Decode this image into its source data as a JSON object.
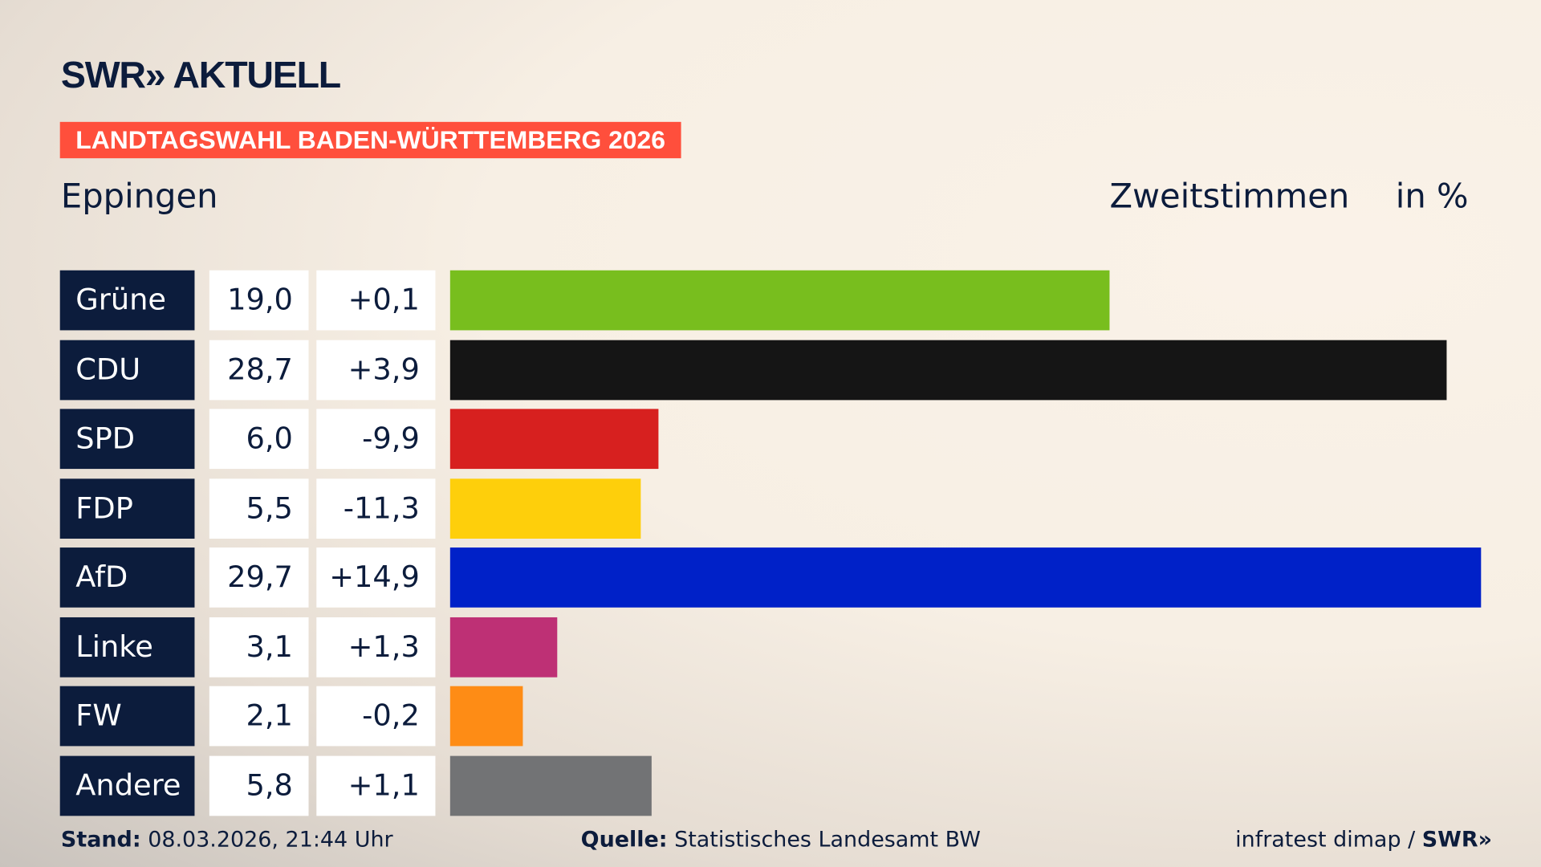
{
  "brand": {
    "logo": "SWR» AKTUELL",
    "footer_logo": "SWR»"
  },
  "badge": "LANDTAGSWAHL BADEN-WÜRTTEMBERG 2026",
  "place": "Eppingen",
  "vote_type": "Zweitstimmen",
  "unit": "in %",
  "chart_data": {
    "type": "bar",
    "orientation": "horizontal",
    "categories": [
      "Grüne",
      "CDU",
      "SPD",
      "FDP",
      "AfD",
      "Linke",
      "FW",
      "Andere"
    ],
    "values": [
      19.0,
      28.7,
      6.0,
      5.5,
      29.7,
      3.1,
      2.1,
      5.8
    ],
    "value_labels": [
      "19,0",
      "28,7",
      "6,0",
      "5,5",
      "29,7",
      "3,1",
      "2,1",
      "5,8"
    ],
    "diff_labels": [
      "+0,1",
      "+3,9",
      "-9,9",
      "-11,3",
      "+14,9",
      "+1,3",
      "-0,2",
      "+1,1"
    ],
    "colors": [
      "#78be1e",
      "#151515",
      "#d7201f",
      "#fecf0b",
      "#0021c8",
      "#be3075",
      "#fe8c15",
      "#727375"
    ]
  },
  "footer": {
    "stand_label": "Stand:",
    "stand_value": "08.03.2026, 21:44 Uhr",
    "source_label": "Quelle:",
    "source_value": "Statistisches Landesamt BW",
    "credit": "infratest dimap /"
  }
}
